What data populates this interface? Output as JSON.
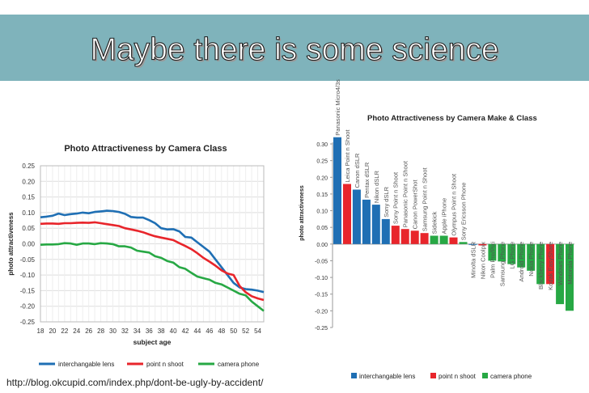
{
  "title": "Maybe there is some science",
  "source_url": "http://blog.okcupid.com/index.php/dont-be-ugly-by-accident/",
  "chart_data": [
    {
      "type": "line",
      "title": "Photo Attractiveness by Camera Class",
      "xlabel": "subject age",
      "ylabel": "photo attractiveness",
      "x": [
        18,
        19,
        20,
        21,
        22,
        23,
        24,
        25,
        26,
        27,
        28,
        29,
        30,
        31,
        32,
        33,
        34,
        35,
        36,
        37,
        38,
        39,
        40,
        41,
        42,
        43,
        44,
        45,
        46,
        47,
        48,
        49,
        50,
        51,
        52,
        53,
        54,
        55
      ],
      "xticks": [
        "18",
        "20",
        "22",
        "24",
        "26",
        "28",
        "30",
        "32",
        "34",
        "36",
        "38",
        "40",
        "42",
        "44",
        "46",
        "48",
        "50",
        "52",
        "54"
      ],
      "ylim": [
        -0.25,
        0.25
      ],
      "yticks": [
        "0.25",
        "0.20",
        "0.15",
        "0.10",
        "0.05",
        "0.00",
        "-0.05",
        "-0.10",
        "-0.15",
        "-0.20",
        "-0.25"
      ],
      "grid": true,
      "legend": "bottom",
      "series": [
        {
          "name": "interchangable lens",
          "color": "#1f6fb4",
          "values": [
            0.085,
            0.087,
            0.09,
            0.097,
            0.092,
            0.095,
            0.097,
            0.1,
            0.098,
            0.102,
            0.104,
            0.106,
            0.105,
            0.102,
            0.096,
            0.086,
            0.084,
            0.084,
            0.076,
            0.066,
            0.05,
            0.046,
            0.047,
            0.04,
            0.022,
            0.02,
            0.005,
            -0.01,
            -0.025,
            -0.05,
            -0.075,
            -0.1,
            -0.125,
            -0.14,
            -0.145,
            -0.147,
            -0.15,
            -0.155
          ]
        },
        {
          "name": "point n shoot",
          "color": "#e8252b",
          "values": [
            0.064,
            0.065,
            0.065,
            0.064,
            0.066,
            0.066,
            0.067,
            0.068,
            0.067,
            0.069,
            0.066,
            0.063,
            0.06,
            0.057,
            0.05,
            0.046,
            0.042,
            0.037,
            0.03,
            0.024,
            0.02,
            0.016,
            0.012,
            0.002,
            -0.007,
            -0.017,
            -0.03,
            -0.045,
            -0.057,
            -0.07,
            -0.085,
            -0.095,
            -0.1,
            -0.135,
            -0.155,
            -0.168,
            -0.175,
            -0.18
          ]
        },
        {
          "name": "camera phone",
          "color": "#27a844",
          "values": [
            -0.003,
            -0.002,
            -0.002,
            -0.001,
            0.002,
            0.001,
            -0.003,
            0.001,
            0.001,
            -0.001,
            0.002,
            0.001,
            -0.001,
            -0.008,
            -0.008,
            -0.012,
            -0.022,
            -0.025,
            -0.028,
            -0.04,
            -0.045,
            -0.055,
            -0.06,
            -0.075,
            -0.08,
            -0.093,
            -0.105,
            -0.11,
            -0.115,
            -0.125,
            -0.13,
            -0.14,
            -0.15,
            -0.16,
            -0.165,
            -0.185,
            -0.2,
            -0.215
          ]
        }
      ]
    },
    {
      "type": "bar",
      "title": "Photo Attractiveness by Camera Make & Class",
      "ylabel": "photo attractiveness",
      "ylim": [
        -0.25,
        0.3
      ],
      "yticks": [
        "0.30",
        "0.25",
        "0.20",
        "0.15",
        "0.10",
        "0.05",
        "0.00",
        "-0.05",
        "-0.10",
        "-0.15",
        "-0.20",
        "-0.25"
      ],
      "legend": "bottom",
      "classes": [
        {
          "name": "interchangable lens",
          "color": "#1f6fb4"
        },
        {
          "name": "point n shoot",
          "color": "#e8252b"
        },
        {
          "name": "camera phone",
          "color": "#27a844"
        }
      ],
      "bars": [
        {
          "label": "Panasonic Micro4/3s",
          "value": 0.32,
          "class": 0
        },
        {
          "label": "Leica Point n Shoot",
          "value": 0.18,
          "class": 1
        },
        {
          "label": "Canon dSLR",
          "value": 0.163,
          "class": 0
        },
        {
          "label": "Pentax dSLR",
          "value": 0.133,
          "class": 0
        },
        {
          "label": "Nikon dSLR",
          "value": 0.118,
          "class": 0
        },
        {
          "label": "Sony dSLR",
          "value": 0.075,
          "class": 0
        },
        {
          "label": "Sony Point n Shoot",
          "value": 0.055,
          "class": 1
        },
        {
          "label": "Panasonic Point n Shoot",
          "value": 0.045,
          "class": 1
        },
        {
          "label": "Canon PowerShot",
          "value": 0.04,
          "class": 1
        },
        {
          "label": "Samsung Point n Shoot",
          "value": 0.033,
          "class": 1
        },
        {
          "label": "Sidekick",
          "value": 0.025,
          "class": 2
        },
        {
          "label": "Apple iPhone",
          "value": 0.025,
          "class": 2
        },
        {
          "label": "Olympus Point n Shoot",
          "value": 0.02,
          "class": 1
        },
        {
          "label": "Sony Ericsson Phone",
          "value": 0.006,
          "class": 2
        },
        {
          "label": "Minolta dSLR",
          "value": -0.002,
          "class": 0
        },
        {
          "label": "Nikon Coolpix",
          "value": -0.004,
          "class": 1
        },
        {
          "label": "Palm Pre/Pixi",
          "value": -0.05,
          "class": 2
        },
        {
          "label": "Samsung Phone",
          "value": -0.052,
          "class": 2
        },
        {
          "label": "LG Phone",
          "value": -0.06,
          "class": 2
        },
        {
          "label": "Android Phone",
          "value": -0.07,
          "class": 2
        },
        {
          "label": "Nokia Phone",
          "value": -0.08,
          "class": 2
        },
        {
          "label": "Blackberry Phone",
          "value": -0.12,
          "class": 2
        },
        {
          "label": "Kodak EasyShare",
          "value": -0.12,
          "class": 1
        },
        {
          "label": "Windows Phone",
          "value": -0.18,
          "class": 2
        },
        {
          "label": "Motorola Phone",
          "value": -0.2,
          "class": 2
        }
      ]
    }
  ]
}
